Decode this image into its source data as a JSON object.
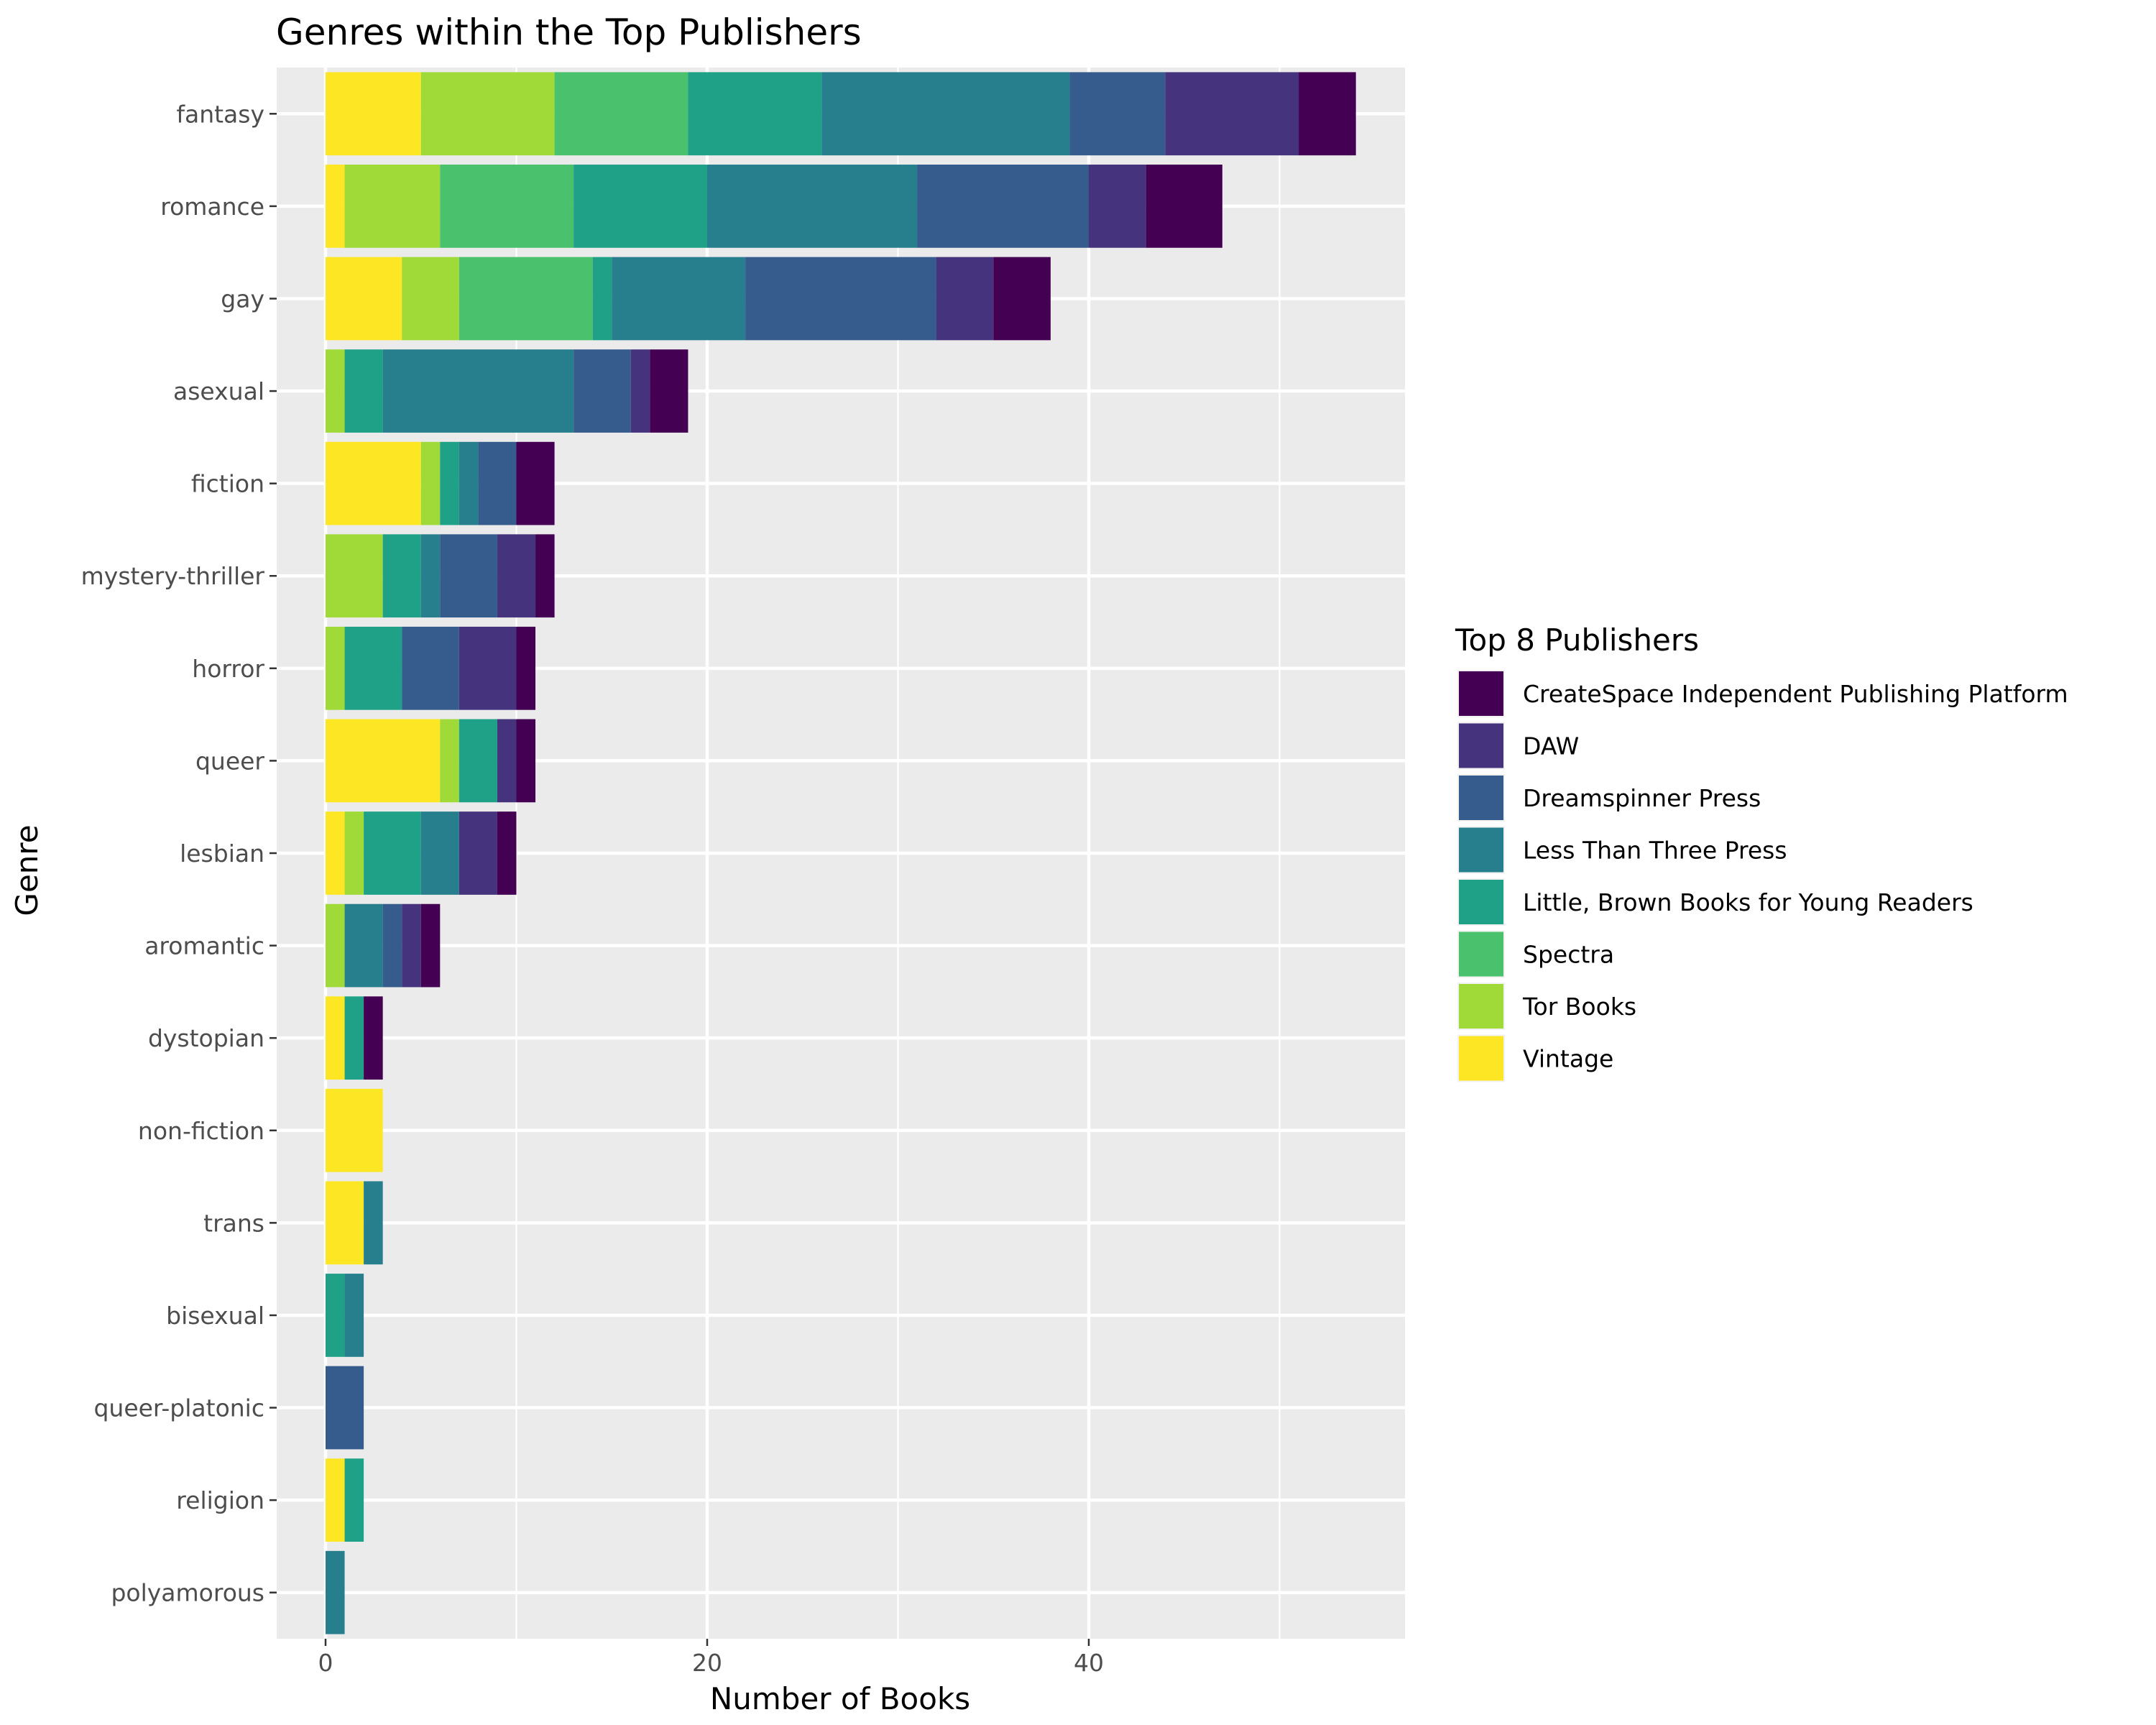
{
  "chart_data": {
    "type": "bar",
    "orientation": "horizontal",
    "stacked": true,
    "title": "Genres within the Top Publishers",
    "xlabel": "Number of Books",
    "ylabel": "Genre",
    "xlim": [
      0,
      56
    ],
    "x_ticks": [
      0,
      20,
      40
    ],
    "grid": true,
    "legend_position": "right",
    "legend_title": "Top 8 Publishers",
    "categories": [
      "fantasy",
      "romance",
      "gay",
      "asexual",
      "fiction",
      "mystery-thriller",
      "horror",
      "queer",
      "lesbian",
      "aromantic",
      "dystopian",
      "non-fiction",
      "trans",
      "bisexual",
      "queer-platonic",
      "religion",
      "polyamorous"
    ],
    "stack_order": [
      "Vintage",
      "Tor Books",
      "Spectra",
      "Little, Brown Books for Young Readers",
      "Less Than Three Press",
      "Dreamspinner Press",
      "DAW",
      "CreateSpace Independent Publishing Platform"
    ],
    "series": [
      {
        "name": "CreateSpace Independent Publishing Platform",
        "color": "#440154",
        "values": [
          3,
          4,
          3,
          2,
          2,
          1,
          1,
          1,
          1,
          1,
          1,
          0,
          0,
          0,
          0,
          0,
          0
        ]
      },
      {
        "name": "DAW",
        "color": "#46337E",
        "values": [
          7,
          3,
          3,
          1,
          0,
          2,
          3,
          1,
          2,
          1,
          0,
          0,
          0,
          0,
          0,
          0,
          0
        ]
      },
      {
        "name": "Dreamspinner Press",
        "color": "#365C8D",
        "values": [
          5,
          9,
          10,
          3,
          2,
          3,
          3,
          0,
          0,
          1,
          0,
          0,
          0,
          0,
          2,
          0,
          0
        ]
      },
      {
        "name": "Less Than Three Press",
        "color": "#277F8E",
        "values": [
          13,
          11,
          7,
          10,
          1,
          1,
          0,
          0,
          2,
          2,
          0,
          0,
          1,
          1,
          0,
          0,
          1
        ]
      },
      {
        "name": "Little, Brown Books for Young Readers",
        "color": "#1FA187",
        "values": [
          7,
          7,
          1,
          2,
          1,
          2,
          3,
          2,
          3,
          0,
          1,
          0,
          0,
          1,
          0,
          1,
          0
        ]
      },
      {
        "name": "Spectra",
        "color": "#4AC16D",
        "values": [
          7,
          7,
          7,
          0,
          0,
          0,
          0,
          0,
          0,
          0,
          0,
          0,
          0,
          0,
          0,
          0,
          0
        ]
      },
      {
        "name": "Tor Books",
        "color": "#A0DA39",
        "values": [
          7,
          5,
          3,
          1,
          1,
          3,
          1,
          1,
          1,
          1,
          0,
          0,
          0,
          0,
          0,
          0,
          0
        ]
      },
      {
        "name": "Vintage",
        "color": "#FDE725",
        "values": [
          5,
          1,
          4,
          0,
          5,
          0,
          0,
          6,
          1,
          0,
          1,
          3,
          2,
          0,
          0,
          1,
          0
        ]
      }
    ]
  },
  "colors": {
    "panel_background": "#EBEBEB",
    "grid_line": "#FFFFFF",
    "tick_mark": "#333333",
    "tick_label": "#4D4D4D"
  }
}
